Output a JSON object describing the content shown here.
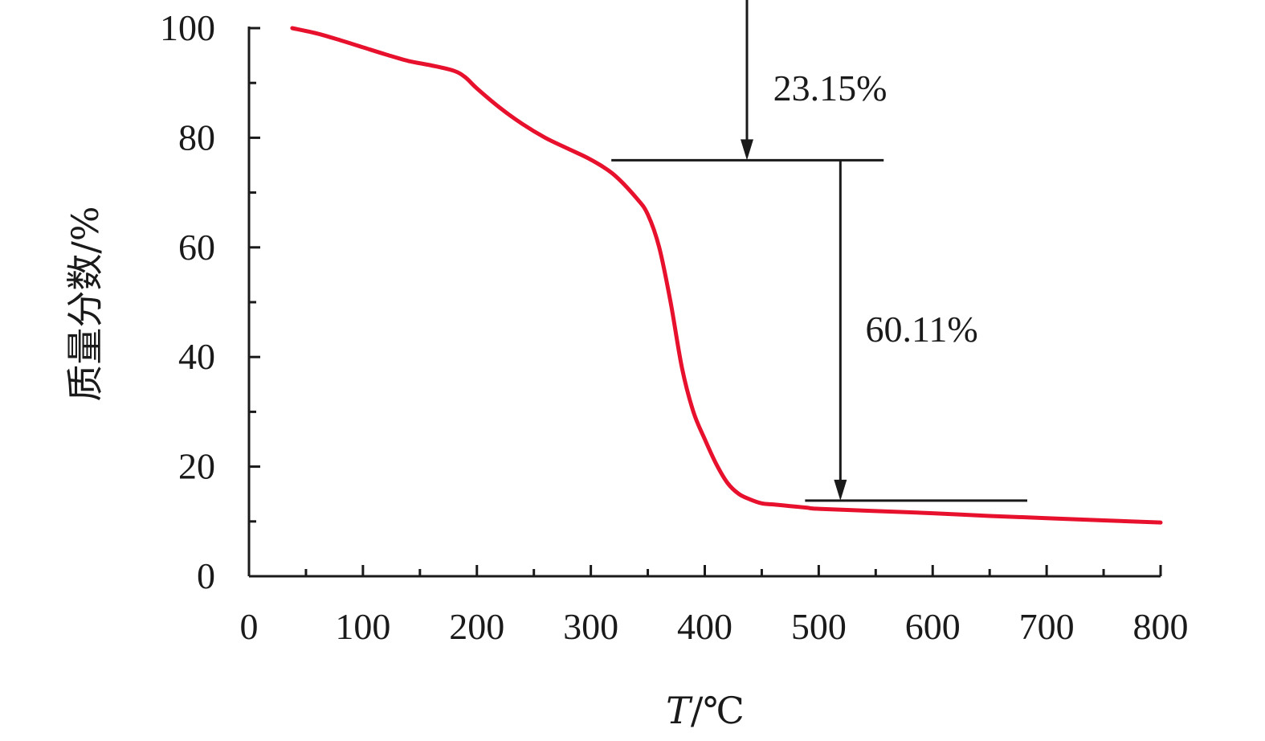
{
  "chart_data": {
    "type": "line",
    "title": "",
    "xlabel_var": "T",
    "xlabel_rest": "/℃",
    "ylabel": "质量分数/%",
    "xlim": [
      0,
      800
    ],
    "ylim": [
      0,
      100
    ],
    "x_ticks": [
      0,
      100,
      200,
      300,
      400,
      500,
      600,
      700,
      800
    ],
    "y_ticks": [
      0,
      20,
      40,
      60,
      80,
      100
    ],
    "x_tick_labels": [
      "0",
      "100",
      "200",
      "300",
      "400",
      "500",
      "600",
      "700",
      "800"
    ],
    "y_tick_labels": [
      "0",
      "20",
      "40",
      "60",
      "80",
      "100"
    ],
    "x_minor_step": 50,
    "y_minor_step": 10,
    "grid": false,
    "series": [
      {
        "color": "#e8112d",
        "x": [
          38,
          60,
          80,
          100,
          120,
          140,
          160,
          180,
          190,
          200,
          220,
          240,
          260,
          280,
          300,
          320,
          340,
          350,
          360,
          370,
          380,
          390,
          400,
          410,
          420,
          430,
          440,
          450,
          460,
          470,
          480,
          490,
          500,
          550,
          600,
          650,
          700,
          750,
          800
        ],
        "y": [
          100,
          99,
          97.8,
          96.5,
          95.2,
          94,
          93.2,
          92.2,
          91,
          89,
          85.5,
          82.5,
          80,
          78,
          76,
          73.3,
          69,
          66,
          60,
          50,
          38,
          30,
          25,
          20.5,
          17,
          15,
          14,
          13.3,
          13.1,
          12.9,
          12.7,
          12.5,
          12.3,
          11.9,
          11.5,
          11,
          10.6,
          10.2,
          9.8
        ]
      }
    ],
    "annotations": {
      "upper_level": {
        "y": 75.9,
        "x_from": 318,
        "x_to": 557
      },
      "lower_level": {
        "y": 13.8,
        "x_from": 488,
        "x_to": 683
      },
      "arrow_1": {
        "x": 437,
        "y_from": 108,
        "y_to": 75.9,
        "label": "23.15%",
        "label_x": 460,
        "label_y": 89
      },
      "arrow_2": {
        "x": 519,
        "y_from": 75.9,
        "y_to": 13.8,
        "label": "60.11%",
        "label_x": 541,
        "label_y": 45
      }
    },
    "colors": {
      "axis": "#1a1a1a",
      "curve": "#e8112d",
      "annotation": "#1a1a1a"
    }
  }
}
